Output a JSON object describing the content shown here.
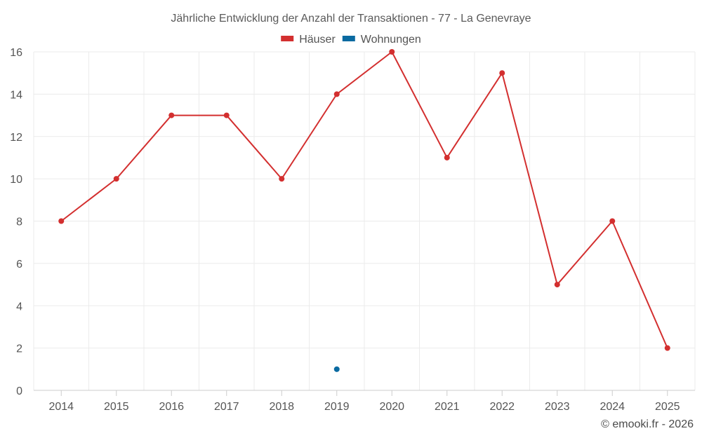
{
  "chart_data": {
    "type": "line",
    "title": "Jährliche Entwicklung der Anzahl der Transaktionen - 77 - La Genevraye",
    "categories": [
      "2014",
      "2015",
      "2016",
      "2017",
      "2018",
      "2019",
      "2020",
      "2021",
      "2022",
      "2023",
      "2024",
      "2025"
    ],
    "series": [
      {
        "name": "Häuser",
        "color": "#d32f2f",
        "values": [
          8,
          10,
          13,
          13,
          10,
          14,
          16,
          11,
          15,
          5,
          8,
          2
        ]
      },
      {
        "name": "Wohnungen",
        "color": "#0a6aa1",
        "values": [
          null,
          null,
          null,
          null,
          null,
          1,
          null,
          null,
          null,
          null,
          null,
          null
        ]
      }
    ],
    "ylim": [
      0,
      16
    ],
    "yticks": [
      0,
      2,
      4,
      6,
      8,
      10,
      12,
      14,
      16
    ],
    "grid": true,
    "legend_position": "top-center"
  },
  "credit": "© emooki.fr - 2026"
}
